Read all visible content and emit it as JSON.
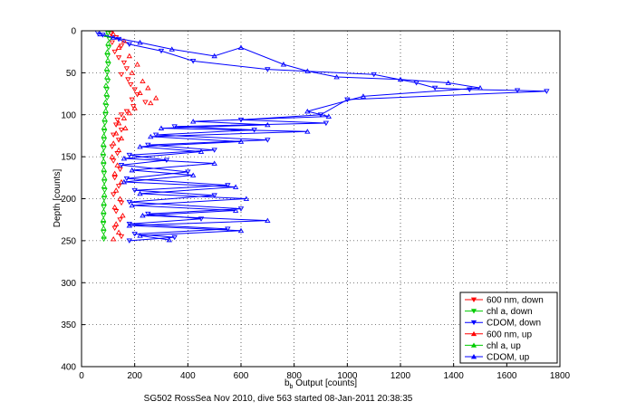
{
  "chart_data": {
    "type": "scatter",
    "xlabel_main": "b",
    "xlabel_sub": "b",
    "xlabel_rest": " Output [counts]",
    "ylabel": "Depth [counts]",
    "caption": "SG502 RossSea Nov 2010, dive 563 started 08-Jan-2011 20:38:35",
    "xlim": [
      0,
      1800
    ],
    "ylim": [
      0,
      400
    ],
    "y_reversed": true,
    "grid": true,
    "legend_position": "bottom-right",
    "x_ticks": [
      0,
      200,
      400,
      600,
      800,
      1000,
      1200,
      1400,
      1600,
      1800
    ],
    "y_ticks": [
      0,
      50,
      100,
      150,
      200,
      250,
      300,
      350,
      400
    ],
    "series": [
      {
        "name": "600 nm, down",
        "color": "#ff0000",
        "marker": "triangle-down",
        "connected": false,
        "points": [
          [
            110,
            3
          ],
          [
            130,
            8
          ],
          [
            115,
            14
          ],
          [
            150,
            18
          ],
          [
            125,
            25
          ],
          [
            140,
            32
          ],
          [
            160,
            38
          ],
          [
            170,
            45
          ],
          [
            150,
            52
          ],
          [
            175,
            58
          ],
          [
            185,
            64
          ],
          [
            200,
            70
          ],
          [
            210,
            76
          ],
          [
            190,
            82
          ],
          [
            240,
            85
          ],
          [
            195,
            90
          ],
          [
            170,
            96
          ],
          [
            150,
            100
          ],
          [
            135,
            106
          ],
          [
            130,
            112
          ],
          [
            150,
            118
          ],
          [
            120,
            124
          ],
          [
            140,
            130
          ],
          [
            115,
            138
          ],
          [
            135,
            146
          ],
          [
            120,
            155
          ],
          [
            145,
            165
          ],
          [
            125,
            175
          ],
          [
            140,
            185
          ],
          [
            120,
            195
          ],
          [
            150,
            205
          ],
          [
            130,
            215
          ],
          [
            145,
            225
          ],
          [
            125,
            235
          ],
          [
            150,
            245
          ]
        ]
      },
      {
        "name": "chl a, down",
        "color": "#00cc00",
        "marker": "triangle-down",
        "connected": false,
        "points": [
          [
            100,
            3
          ],
          [
            105,
            10
          ],
          [
            102,
            20
          ],
          [
            98,
            30
          ],
          [
            101,
            40
          ],
          [
            97,
            50
          ],
          [
            99,
            60
          ],
          [
            95,
            70
          ],
          [
            96,
            80
          ],
          [
            93,
            90
          ],
          [
            90,
            100
          ],
          [
            88,
            110
          ],
          [
            86,
            120
          ],
          [
            85,
            130
          ],
          [
            84,
            140
          ],
          [
            82,
            150
          ],
          [
            83,
            160
          ],
          [
            85,
            170
          ],
          [
            86,
            180
          ],
          [
            87,
            190
          ],
          [
            85,
            200
          ],
          [
            84,
            210
          ],
          [
            83,
            220
          ],
          [
            82,
            230
          ],
          [
            83,
            240
          ],
          [
            84,
            248
          ]
        ]
      },
      {
        "name": "CDOM, down",
        "color": "#0000ff",
        "marker": "triangle-down",
        "connected": true,
        "points": [
          [
            60,
            2
          ],
          [
            80,
            5
          ],
          [
            140,
            10
          ],
          [
            180,
            16
          ],
          [
            300,
            24
          ],
          [
            420,
            36
          ],
          [
            700,
            46
          ],
          [
            1100,
            52
          ],
          [
            1260,
            62
          ],
          [
            1330,
            68
          ],
          [
            1460,
            70
          ],
          [
            1640,
            71
          ],
          [
            1750,
            72
          ],
          [
            1000,
            82
          ],
          [
            900,
            100
          ],
          [
            600,
            106
          ],
          [
            920,
            110
          ],
          [
            350,
            114
          ],
          [
            650,
            118
          ],
          [
            280,
            124
          ],
          [
            700,
            130
          ],
          [
            250,
            136
          ],
          [
            500,
            142
          ],
          [
            180,
            148
          ],
          [
            320,
            154
          ],
          [
            150,
            160
          ],
          [
            400,
            168
          ],
          [
            170,
            176
          ],
          [
            550,
            184
          ],
          [
            200,
            190
          ],
          [
            500,
            196
          ],
          [
            180,
            204
          ],
          [
            600,
            212
          ],
          [
            250,
            218
          ],
          [
            450,
            224
          ],
          [
            180,
            230
          ],
          [
            550,
            236
          ],
          [
            200,
            242
          ],
          [
            350,
            246
          ],
          [
            180,
            250
          ]
        ]
      },
      {
        "name": "600 nm, up",
        "color": "#ff0000",
        "marker": "triangle-up",
        "connected": false,
        "points": [
          [
            120,
            4
          ],
          [
            160,
            12
          ],
          [
            140,
            20
          ],
          [
            180,
            30
          ],
          [
            210,
            40
          ],
          [
            190,
            50
          ],
          [
            230,
            60
          ],
          [
            250,
            68
          ],
          [
            220,
            74
          ],
          [
            280,
            80
          ],
          [
            260,
            86
          ],
          [
            200,
            92
          ],
          [
            180,
            98
          ],
          [
            160,
            104
          ],
          [
            140,
            110
          ],
          [
            165,
            116
          ],
          [
            130,
            122
          ],
          [
            150,
            128
          ],
          [
            120,
            134
          ],
          [
            140,
            142
          ],
          [
            115,
            150
          ],
          [
            135,
            160
          ],
          [
            125,
            170
          ],
          [
            150,
            180
          ],
          [
            130,
            190
          ],
          [
            145,
            200
          ],
          [
            125,
            210
          ],
          [
            155,
            220
          ],
          [
            130,
            230
          ],
          [
            140,
            240
          ],
          [
            120,
            248
          ]
        ]
      },
      {
        "name": "chl a, up",
        "color": "#00cc00",
        "marker": "triangle-up",
        "connected": false,
        "points": [
          [
            95,
            5
          ],
          [
            100,
            15
          ],
          [
            97,
            25
          ],
          [
            99,
            35
          ],
          [
            95,
            45
          ],
          [
            96,
            55
          ],
          [
            92,
            65
          ],
          [
            94,
            75
          ],
          [
            90,
            85
          ],
          [
            91,
            95
          ],
          [
            87,
            105
          ],
          [
            85,
            115
          ],
          [
            84,
            125
          ],
          [
            82,
            135
          ],
          [
            81,
            145
          ],
          [
            83,
            155
          ],
          [
            84,
            165
          ],
          [
            86,
            175
          ],
          [
            85,
            185
          ],
          [
            86,
            195
          ],
          [
            84,
            205
          ],
          [
            83,
            215
          ],
          [
            82,
            225
          ],
          [
            83,
            235
          ],
          [
            84,
            245
          ]
        ]
      },
      {
        "name": "CDOM, up",
        "color": "#0000ff",
        "marker": "triangle-up",
        "connected": true,
        "points": [
          [
            70,
            4
          ],
          [
            120,
            8
          ],
          [
            220,
            14
          ],
          [
            340,
            22
          ],
          [
            500,
            30
          ],
          [
            600,
            20
          ],
          [
            760,
            40
          ],
          [
            850,
            48
          ],
          [
            960,
            55
          ],
          [
            1200,
            58
          ],
          [
            1380,
            62
          ],
          [
            1500,
            68
          ],
          [
            1060,
            78
          ],
          [
            850,
            96
          ],
          [
            930,
            102
          ],
          [
            420,
            108
          ],
          [
            700,
            112
          ],
          [
            300,
            116
          ],
          [
            850,
            120
          ],
          [
            260,
            126
          ],
          [
            600,
            132
          ],
          [
            220,
            138
          ],
          [
            450,
            144
          ],
          [
            160,
            152
          ],
          [
            500,
            158
          ],
          [
            190,
            166
          ],
          [
            420,
            172
          ],
          [
            160,
            180
          ],
          [
            580,
            186
          ],
          [
            220,
            194
          ],
          [
            620,
            200
          ],
          [
            190,
            208
          ],
          [
            580,
            214
          ],
          [
            230,
            220
          ],
          [
            700,
            226
          ],
          [
            180,
            232
          ],
          [
            600,
            238
          ],
          [
            220,
            244
          ],
          [
            330,
            249
          ]
        ]
      }
    ]
  }
}
